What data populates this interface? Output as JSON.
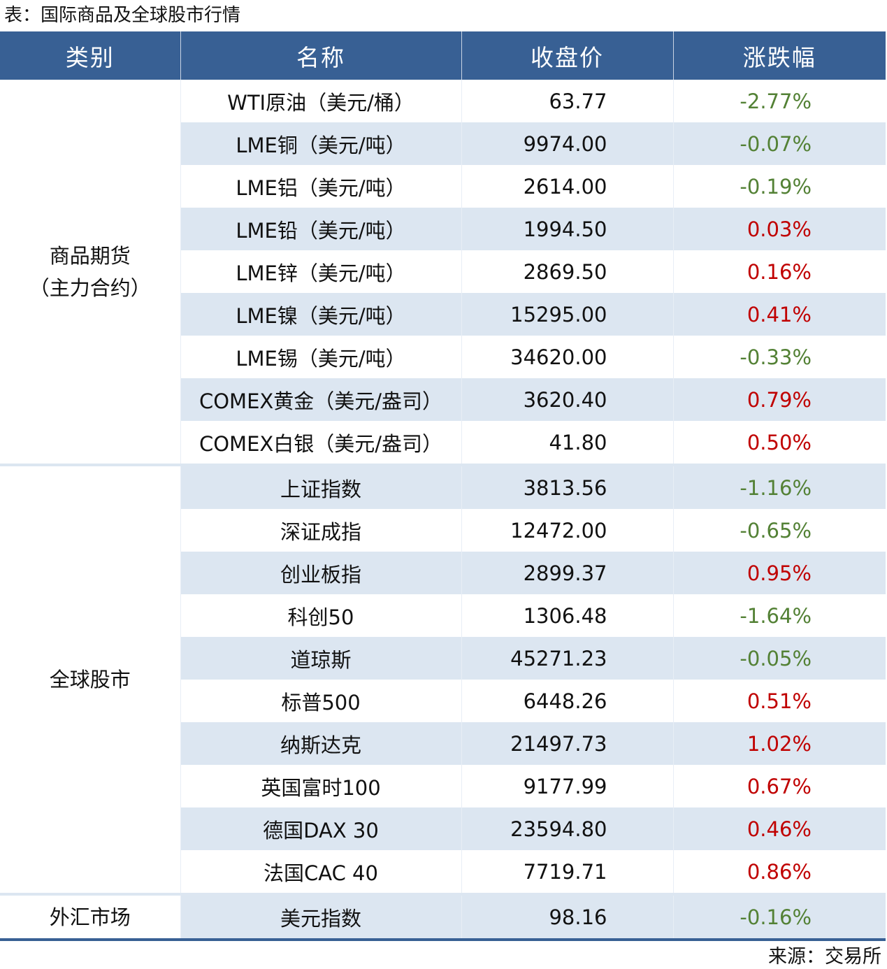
{
  "title": "表：国际商品及全球股市行情",
  "source": "来源：交易所",
  "colors": {
    "header_bg": "#386094",
    "stripe": "#dce6f1",
    "up": "#c00000",
    "down": "#538135"
  },
  "headers": [
    "类别",
    "名称",
    "收盘价",
    "涨跌幅"
  ],
  "groups": [
    {
      "category": "商品期货（主力合约）",
      "rows": [
        {
          "name": "WTI原油（美元/桶）",
          "price": "63.77",
          "change": "-2.77%"
        },
        {
          "name": "LME铜（美元/吨）",
          "price": "9974.00",
          "change": "-0.07%"
        },
        {
          "name": "LME铝（美元/吨）",
          "price": "2614.00",
          "change": "-0.19%"
        },
        {
          "name": "LME铅（美元/吨）",
          "price": "1994.50",
          "change": "0.03%"
        },
        {
          "name": "LME锌（美元/吨）",
          "price": "2869.50",
          "change": "0.16%"
        },
        {
          "name": "LME镍（美元/吨）",
          "price": "15295.00",
          "change": "0.41%"
        },
        {
          "name": "LME锡（美元/吨）",
          "price": "34620.00",
          "change": "-0.33%"
        },
        {
          "name": "COMEX黄金（美元/盎司）",
          "price": "3620.40",
          "change": "0.79%"
        },
        {
          "name": "COMEX白银（美元/盎司）",
          "price": "41.80",
          "change": "0.50%"
        }
      ]
    },
    {
      "category": "全球股市",
      "rows": [
        {
          "name": "上证指数",
          "price": "3813.56",
          "change": "-1.16%"
        },
        {
          "name": "深证成指",
          "price": "12472.00",
          "change": "-0.65%"
        },
        {
          "name": "创业板指",
          "price": "2899.37",
          "change": "0.95%"
        },
        {
          "name": "科创50",
          "price": "1306.48",
          "change": "-1.64%"
        },
        {
          "name": "道琼斯",
          "price": "45271.23",
          "change": "-0.05%"
        },
        {
          "name": "标普500",
          "price": "6448.26",
          "change": "0.51%"
        },
        {
          "name": "纳斯达克",
          "price": "21497.73",
          "change": "1.02%"
        },
        {
          "name": "英国富时100",
          "price": "9177.99",
          "change": "0.67%"
        },
        {
          "name": "德国DAX 30",
          "price": "23594.80",
          "change": "0.46%"
        },
        {
          "name": "法国CAC 40",
          "price": "7719.71",
          "change": "0.86%"
        }
      ]
    },
    {
      "category": "外汇市场",
      "rows": [
        {
          "name": "美元指数",
          "price": "98.16",
          "change": "-0.16%"
        }
      ]
    }
  ]
}
